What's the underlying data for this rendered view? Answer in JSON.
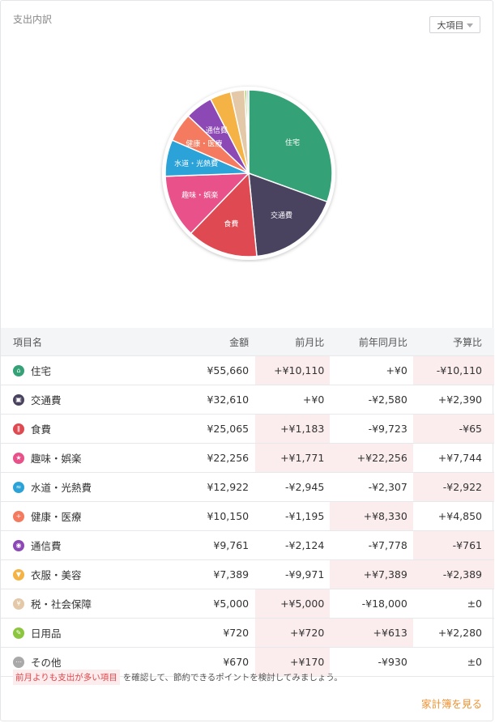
{
  "header": {
    "title": "支出内訳",
    "dropdown_label": "大項目"
  },
  "chart_data": {
    "type": "pie",
    "slices": [
      {
        "label": "住宅",
        "value": 55660,
        "color": "#35a177",
        "show_label": true
      },
      {
        "label": "交通費",
        "value": 32610,
        "color": "#4a4360",
        "show_label": true
      },
      {
        "label": "食費",
        "value": 25065,
        "color": "#df4a52",
        "show_label": true
      },
      {
        "label": "趣味・娯楽",
        "value": 22256,
        "color": "#e8518a",
        "show_label": true
      },
      {
        "label": "水道・光熱費",
        "value": 12922,
        "color": "#2ba3d9",
        "show_label": true
      },
      {
        "label": "健康・医療",
        "value": 10150,
        "color": "#f47b5f",
        "show_label": true
      },
      {
        "label": "通信費",
        "value": 9761,
        "color": "#8c48b5",
        "show_label": true
      },
      {
        "label": "衣服・美容",
        "value": 7389,
        "color": "#f5b245",
        "show_label": false
      },
      {
        "label": "税・社会保障",
        "value": 5000,
        "color": "#e4c9a8",
        "show_label": false
      },
      {
        "label": "日用品",
        "value": 720,
        "color": "#8cc63f",
        "show_label": false
      },
      {
        "label": "その他",
        "value": 670,
        "color": "#b5b5b5",
        "show_label": false
      }
    ]
  },
  "table": {
    "headers": {
      "name": "項目名",
      "amount": "金額",
      "mom": "前月比",
      "yoy": "前年同月比",
      "budget": "予算比"
    },
    "rows": [
      {
        "name": "住宅",
        "icon": "house-icon",
        "color": "#35a177",
        "glyph": "⌂",
        "amount": "¥55,660",
        "mom": "+¥10,110",
        "mom_hl": true,
        "yoy": "+¥0",
        "yoy_hl": false,
        "budget": "-¥10,110",
        "budget_hl": true
      },
      {
        "name": "交通費",
        "icon": "train-icon",
        "color": "#4a4360",
        "glyph": "▣",
        "amount": "¥32,610",
        "mom": "+¥0",
        "mom_hl": false,
        "yoy": "-¥2,580",
        "yoy_hl": false,
        "budget": "+¥2,390",
        "budget_hl": false
      },
      {
        "name": "食費",
        "icon": "fork-knife-icon",
        "color": "#df4a52",
        "glyph": "ǁ",
        "amount": "¥25,065",
        "mom": "+¥1,183",
        "mom_hl": true,
        "yoy": "-¥9,723",
        "yoy_hl": false,
        "budget": "-¥65",
        "budget_hl": true
      },
      {
        "name": "趣味・娯楽",
        "icon": "star-icon",
        "color": "#e8518a",
        "glyph": "★",
        "amount": "¥22,256",
        "mom": "+¥1,771",
        "mom_hl": true,
        "yoy": "+¥22,256",
        "yoy_hl": true,
        "budget": "+¥7,744",
        "budget_hl": false
      },
      {
        "name": "水道・光熱費",
        "icon": "faucet-icon",
        "color": "#2ba3d9",
        "glyph": "≈",
        "amount": "¥12,922",
        "mom": "-¥2,945",
        "mom_hl": false,
        "yoy": "-¥2,307",
        "yoy_hl": false,
        "budget": "-¥2,922",
        "budget_hl": true
      },
      {
        "name": "健康・医療",
        "icon": "medical-cross-icon",
        "color": "#f47b5f",
        "glyph": "+",
        "amount": "¥10,150",
        "mom": "-¥1,195",
        "mom_hl": false,
        "yoy": "+¥8,330",
        "yoy_hl": true,
        "budget": "+¥4,850",
        "budget_hl": false
      },
      {
        "name": "通信費",
        "icon": "signal-icon",
        "color": "#8c48b5",
        "glyph": "◉",
        "amount": "¥9,761",
        "mom": "-¥2,124",
        "mom_hl": false,
        "yoy": "-¥7,778",
        "yoy_hl": false,
        "budget": "-¥761",
        "budget_hl": true
      },
      {
        "name": "衣服・美容",
        "icon": "shirt-icon",
        "color": "#f5b245",
        "glyph": "▼",
        "amount": "¥7,389",
        "mom": "-¥9,971",
        "mom_hl": false,
        "yoy": "+¥7,389",
        "yoy_hl": true,
        "budget": "-¥2,389",
        "budget_hl": true
      },
      {
        "name": "税・社会保障",
        "icon": "tax-icon",
        "color": "#e4c9a8",
        "glyph": "¥",
        "amount": "¥5,000",
        "mom": "+¥5,000",
        "mom_hl": true,
        "yoy": "-¥18,000",
        "yoy_hl": false,
        "budget": "±0",
        "budget_hl": false
      },
      {
        "name": "日用品",
        "icon": "brush-icon",
        "color": "#8cc63f",
        "glyph": "✎",
        "amount": "¥720",
        "mom": "+¥720",
        "mom_hl": true,
        "yoy": "+¥613",
        "yoy_hl": true,
        "budget": "+¥2,280",
        "budget_hl": false
      },
      {
        "name": "その他",
        "icon": "more-icon",
        "color": "#a9a9a9",
        "glyph": "⋯",
        "amount": "¥670",
        "mom": "+¥170",
        "mom_hl": true,
        "yoy": "-¥930",
        "yoy_hl": false,
        "budget": "±0",
        "budget_hl": false
      }
    ]
  },
  "footer": {
    "note_highlight": "前月よりも支出が多い項目",
    "note_text": "を確認して、節約できるポイントを検討してみましょう。",
    "link_label": "家計簿を見る"
  }
}
